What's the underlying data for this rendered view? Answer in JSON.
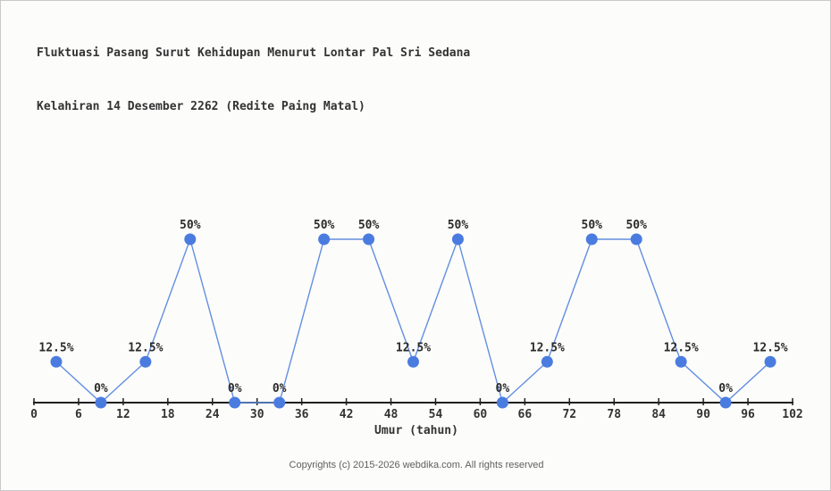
{
  "title": {
    "line1": "Fluktuasi Pasang Surut Kehidupan Menurut Lontar Pal Sri Sedana",
    "line2": "Kelahiran 14 Desember 2262 (Redite Paing Matal)"
  },
  "footer": {
    "copyright": "Copyrights (c) 2015-2026 webdika.com. All rights reserved"
  },
  "chart_data": {
    "type": "line",
    "title": "Fluktuasi Pasang Surut Kehidupan Menurut Lontar Pal Sri Sedana Kelahiran 14 Desember 2262 (Redite Paing Matal)",
    "xlabel": "Umur (tahun)",
    "ylabel": "",
    "x": [
      3,
      9,
      15,
      21,
      27,
      33,
      39,
      45,
      51,
      57,
      63,
      69,
      75,
      81,
      87,
      93,
      99
    ],
    "y": [
      12.5,
      0,
      12.5,
      50,
      0,
      0,
      50,
      50,
      12.5,
      50,
      0,
      12.5,
      50,
      50,
      12.5,
      0,
      12.5
    ],
    "point_labels": [
      "12.5%",
      "0%",
      "12.5%",
      "50%",
      "0%",
      "0%",
      "50%",
      "50%",
      "12.5%",
      "50%",
      "0%",
      "12.5%",
      "50%",
      "50%",
      "12.5%",
      "0%",
      "12.5%"
    ],
    "xticks": [
      0,
      6,
      12,
      18,
      24,
      30,
      36,
      42,
      48,
      54,
      60,
      66,
      72,
      78,
      84,
      90,
      96,
      102
    ],
    "xlim": [
      0,
      102
    ],
    "ylim": [
      0,
      100
    ],
    "grid": "off",
    "legend": "none",
    "colors": {
      "line": "#628fe0",
      "marker": "#4a7ce0",
      "axis": "#1f1f1f",
      "tick_label": "#333333",
      "point_label": "#2b2b2b"
    }
  }
}
